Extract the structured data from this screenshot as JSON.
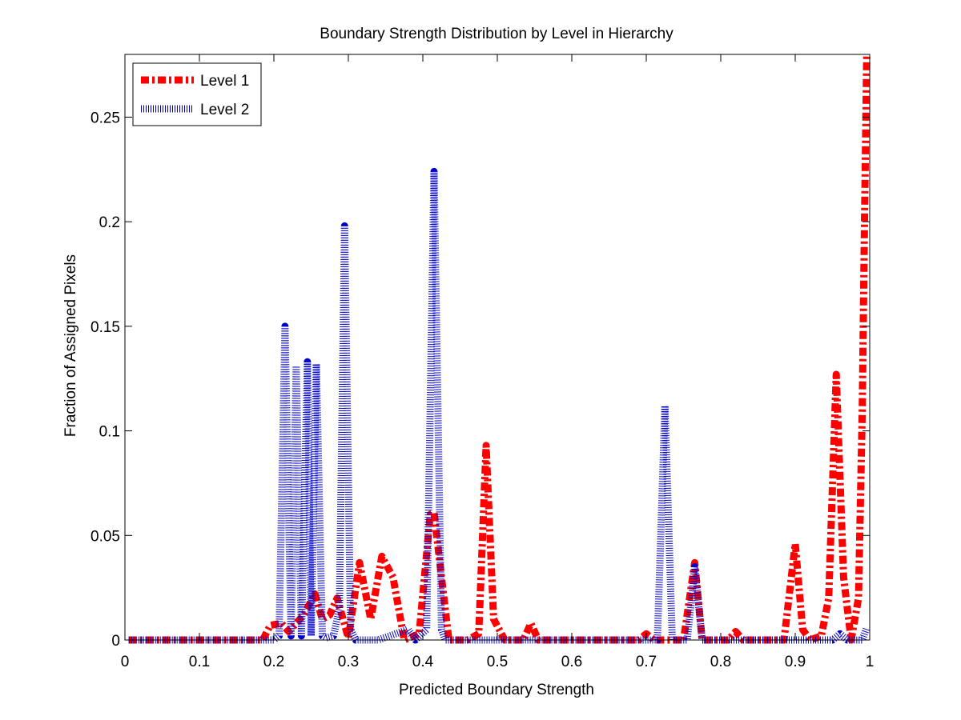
{
  "chart_data": {
    "type": "line",
    "title": "Boundary Strength Distribution by Level in Hierarchy",
    "xlabel": "Predicted Boundary Strength",
    "ylabel": "Fraction of Assigned Pixels",
    "xlim": [
      0,
      1
    ],
    "ylim": [
      0,
      0.28
    ],
    "xticks": [
      0,
      0.1,
      0.2,
      0.3,
      0.4,
      0.5,
      0.6,
      0.7,
      0.8,
      0.9,
      1
    ],
    "xtick_labels": [
      "0",
      "0.1",
      "0.2",
      "0.3",
      "0.4",
      "0.5",
      "0.6",
      "0.7",
      "0.8",
      "0.9",
      "1"
    ],
    "yticks": [
      0,
      0.05,
      0.1,
      0.15,
      0.2,
      0.25
    ],
    "ytick_labels": [
      "0",
      "0.05",
      "0.1",
      "0.15",
      "0.2",
      "0.25"
    ],
    "grid": false,
    "legend_position": "top-left",
    "series": [
      {
        "name": "Level 1",
        "color": "#ff0000",
        "style": "dash-dot",
        "x": [
          0.005,
          0.185,
          0.195,
          0.21,
          0.22,
          0.23,
          0.24,
          0.255,
          0.265,
          0.275,
          0.285,
          0.3,
          0.315,
          0.33,
          0.345,
          0.36,
          0.375,
          0.395,
          0.41,
          0.415,
          0.425,
          0.435,
          0.46,
          0.475,
          0.485,
          0.495,
          0.51,
          0.535,
          0.545,
          0.555,
          0.57,
          0.69,
          0.7,
          0.71,
          0.75,
          0.765,
          0.775,
          0.81,
          0.82,
          0.83,
          0.885,
          0.9,
          0.91,
          0.92,
          0.935,
          0.945,
          0.955,
          0.965,
          0.975,
          0.985,
          0.99,
          0.993,
          0.996
        ],
        "y": [
          0,
          0,
          0.007,
          0.008,
          0.004,
          0.008,
          0.012,
          0.022,
          0.01,
          0.012,
          0.02,
          0.001,
          0.037,
          0.01,
          0.04,
          0.03,
          0,
          0.003,
          0.06,
          0.061,
          0.03,
          0,
          0,
          0.003,
          0.093,
          0.01,
          0,
          0,
          0.008,
          0,
          0,
          0,
          0.003,
          0,
          0,
          0.037,
          0,
          0,
          0.004,
          0,
          0,
          0.046,
          0.005,
          0,
          0.002,
          0.02,
          0.127,
          0.03,
          0,
          0.02,
          0.11,
          0.2,
          0.28
        ]
      },
      {
        "name": "Level 2",
        "color": "#0000cc",
        "style": "dotted",
        "x": [
          0.005,
          0.2,
          0.207,
          0.215,
          0.223,
          0.23,
          0.237,
          0.245,
          0.25,
          0.257,
          0.265,
          0.27,
          0.28,
          0.288,
          0.295,
          0.303,
          0.31,
          0.34,
          0.38,
          0.39,
          0.405,
          0.415,
          0.425,
          0.43,
          0.715,
          0.725,
          0.735,
          0.755,
          0.765,
          0.775,
          0.79,
          0.95,
          0.96,
          0.97,
          0.99,
          0.996
        ],
        "y": [
          0,
          0,
          0.002,
          0.15,
          0.002,
          0.131,
          0.002,
          0.133,
          0.002,
          0.132,
          0.002,
          0.001,
          0.002,
          0.015,
          0.198,
          0.005,
          0,
          0,
          0.005,
          0,
          0.005,
          0.224,
          0.005,
          0,
          0,
          0.112,
          0,
          0,
          0.035,
          0,
          0,
          0,
          0.003,
          0,
          0,
          0.006
        ]
      }
    ]
  }
}
